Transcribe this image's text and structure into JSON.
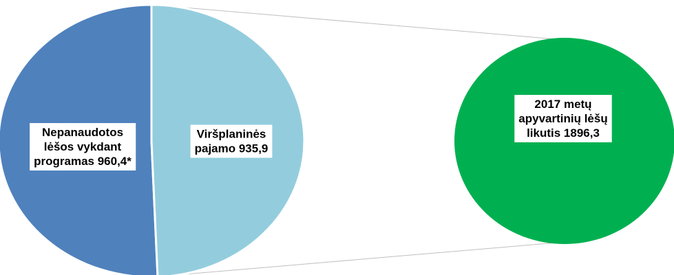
{
  "chart_data": {
    "type": "pie",
    "subtype": "pie-of-pie",
    "slices": [
      {
        "label_lines": [
          "Nepanaudotos",
          "lėšos vykdant",
          "programas 960,4*"
        ],
        "value": 960.4,
        "color": "#4f81bd"
      },
      {
        "label_lines": [
          "Viršplaninės",
          "pajamo 935,9"
        ],
        "value": 935.9,
        "color": "#93cddd"
      }
    ],
    "summary": {
      "label_lines": [
        "2017 metų",
        "apyvartinių lėšų",
        "likutis 1896,3"
      ],
      "value": 1896.3,
      "color": "#00b050"
    },
    "connector_color": "#bfbfbf"
  }
}
